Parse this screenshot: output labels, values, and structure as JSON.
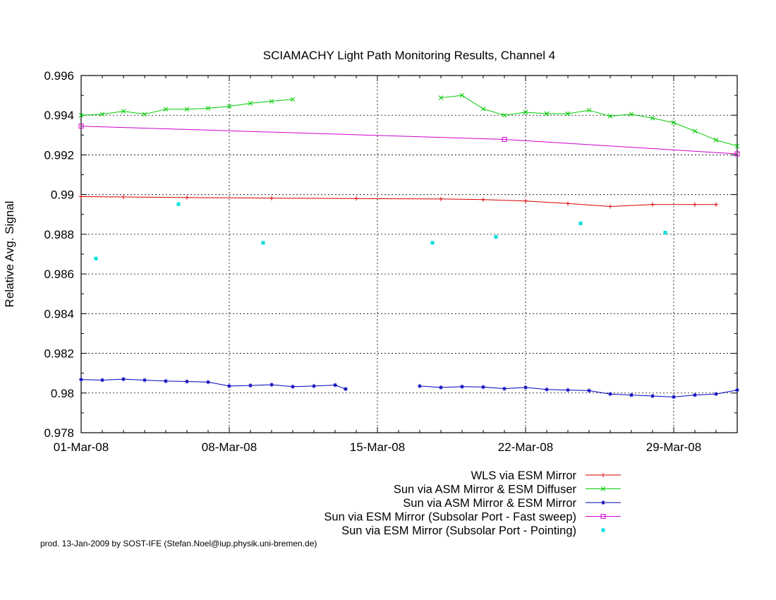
{
  "footer_text": "prod. 13-Jan-2009 by SOST-IFE (Stefan.Noel@iup.physik.uni-bremen.de)",
  "chart_data": {
    "type": "line",
    "title": "SCIAMACHY Light Path Monitoring Results, Channel 4",
    "xlabel": "",
    "ylabel": "Relative Avg. Signal",
    "x_unit": "date",
    "xlim": [
      "2008-03-01",
      "2008-03-31"
    ],
    "ylim": [
      0.978,
      0.996
    ],
    "yticks": [
      0.978,
      0.98,
      0.982,
      0.984,
      0.986,
      0.988,
      0.99,
      0.992,
      0.994,
      0.996
    ],
    "ytick_labels": [
      "0.978",
      "0.98",
      "0.982",
      "0.984",
      "0.986",
      "0.988",
      "0.99",
      "0.992",
      "0.994",
      "0.996"
    ],
    "xticks": [
      "2008-03-01",
      "2008-03-08",
      "2008-03-15",
      "2008-03-22",
      "2008-03-29"
    ],
    "xtick_labels": [
      "01-Mar-08",
      "08-Mar-08",
      "15-Mar-08",
      "22-Mar-08",
      "29-Mar-08"
    ],
    "grid": true,
    "legend_position": "below plot, right-aligned",
    "series": [
      {
        "name": "WLS via ESM Mirror",
        "color": "#d40000",
        "marker": "plus",
        "style": "line",
        "points": [
          [
            "2008-03-01",
            0.9899
          ],
          [
            "2008-03-03",
            0.98988
          ],
          [
            "2008-03-06",
            0.98985
          ],
          [
            "2008-03-10",
            0.98982
          ],
          [
            "2008-03-14",
            0.9898
          ],
          [
            "2008-03-18",
            0.98978
          ],
          [
            "2008-03-20",
            0.98975
          ],
          [
            "2008-03-22",
            0.98968
          ],
          [
            "2008-03-24",
            0.98955
          ],
          [
            "2008-03-26",
            0.9894
          ],
          [
            "2008-03-28",
            0.9895
          ],
          [
            "2008-03-30",
            0.9895
          ],
          [
            "2008-03-31",
            0.9895
          ]
        ]
      },
      {
        "name": "Sun via ASM Mirror & ESM Diffuser",
        "color": "#00cc00",
        "marker": "x",
        "style": "line",
        "segments": [
          [
            [
              "2008-03-01",
              0.994
            ],
            [
              "2008-03-02",
              0.99405
            ],
            [
              "2008-03-03",
              0.9942
            ],
            [
              "2008-03-04",
              0.99405
            ],
            [
              "2008-03-05",
              0.9943
            ],
            [
              "2008-03-06",
              0.9943
            ],
            [
              "2008-03-07",
              0.99435
            ],
            [
              "2008-03-08",
              0.99445
            ],
            [
              "2008-03-09",
              0.9946
            ],
            [
              "2008-03-10",
              0.9947
            ],
            [
              "2008-03-11",
              0.9948
            ]
          ],
          [
            [
              "2008-03-18",
              0.99488
            ],
            [
              "2008-03-19",
              0.995
            ],
            [
              "2008-03-20",
              0.99432
            ],
            [
              "2008-03-21",
              0.994
            ],
            [
              "2008-03-22",
              0.99415
            ],
            [
              "2008-03-23",
              0.99408
            ],
            [
              "2008-03-24",
              0.99408
            ],
            [
              "2008-03-25",
              0.99425
            ],
            [
              "2008-03-26",
              0.99395
            ],
            [
              "2008-03-27",
              0.99405
            ],
            [
              "2008-03-28",
              0.99385
            ],
            [
              "2008-03-29",
              0.99362
            ],
            [
              "2008-03-30",
              0.9932
            ],
            [
              "2008-03-31",
              0.99275
            ],
            [
              "2008-04-01",
              0.99245
            ]
          ]
        ]
      },
      {
        "name": "Sun via ASM Mirror & ESM Mirror",
        "color": "#0000bb",
        "marker": "star",
        "style": "line",
        "segments": [
          [
            [
              "2008-03-01",
              0.98068
            ],
            [
              "2008-03-02",
              0.98065
            ],
            [
              "2008-03-03",
              0.9807
            ],
            [
              "2008-03-04",
              0.98065
            ],
            [
              "2008-03-05",
              0.9806
            ],
            [
              "2008-03-06",
              0.98058
            ],
            [
              "2008-03-07",
              0.98055
            ],
            [
              "2008-03-08",
              0.98035
            ],
            [
              "2008-03-09",
              0.98038
            ],
            [
              "2008-03-10",
              0.98042
            ],
            [
              "2008-03-11",
              0.98032
            ],
            [
              "2008-03-12",
              0.98035
            ],
            [
              "2008-03-13",
              0.9804
            ],
            [
              "2008-03-13.5",
              0.9802
            ]
          ],
          [
            [
              "2008-03-17",
              0.98035
            ],
            [
              "2008-03-18",
              0.98028
            ],
            [
              "2008-03-19",
              0.98032
            ],
            [
              "2008-03-20",
              0.9803
            ],
            [
              "2008-03-21",
              0.98022
            ],
            [
              "2008-03-22",
              0.98028
            ],
            [
              "2008-03-23",
              0.98018
            ],
            [
              "2008-03-24",
              0.98015
            ],
            [
              "2008-03-25",
              0.98012
            ],
            [
              "2008-03-26",
              0.97995
            ],
            [
              "2008-03-27",
              0.9799
            ],
            [
              "2008-03-28",
              0.97985
            ],
            [
              "2008-03-29",
              0.9798
            ],
            [
              "2008-03-30",
              0.9799
            ],
            [
              "2008-03-31",
              0.97995
            ],
            [
              "2008-04-01",
              0.98015
            ]
          ]
        ]
      },
      {
        "name": "Sun via ESM Mirror (Subsolar Port - Fast sweep)",
        "color": "#cc00cc",
        "marker": "square-open",
        "style": "line",
        "points": [
          [
            "2008-03-01",
            0.99345
          ],
          [
            "2008-03-21",
            0.99278
          ],
          [
            "2008-04-01",
            0.99205
          ]
        ]
      },
      {
        "name": "Sun via ESM Mirror (Subsolar Port - Pointing)",
        "color": "#00e0e0",
        "marker": "square-filled",
        "style": "points",
        "points": [
          [
            "2008-03-01.7",
            0.98678
          ],
          [
            "2008-03-05.6",
            0.98952
          ],
          [
            "2008-03-09.6",
            0.98757
          ],
          [
            "2008-03-17.6",
            0.98757
          ],
          [
            "2008-03-20.6",
            0.98787
          ],
          [
            "2008-03-24.6",
            0.98855
          ],
          [
            "2008-03-28.6",
            0.98808
          ]
        ]
      }
    ]
  }
}
